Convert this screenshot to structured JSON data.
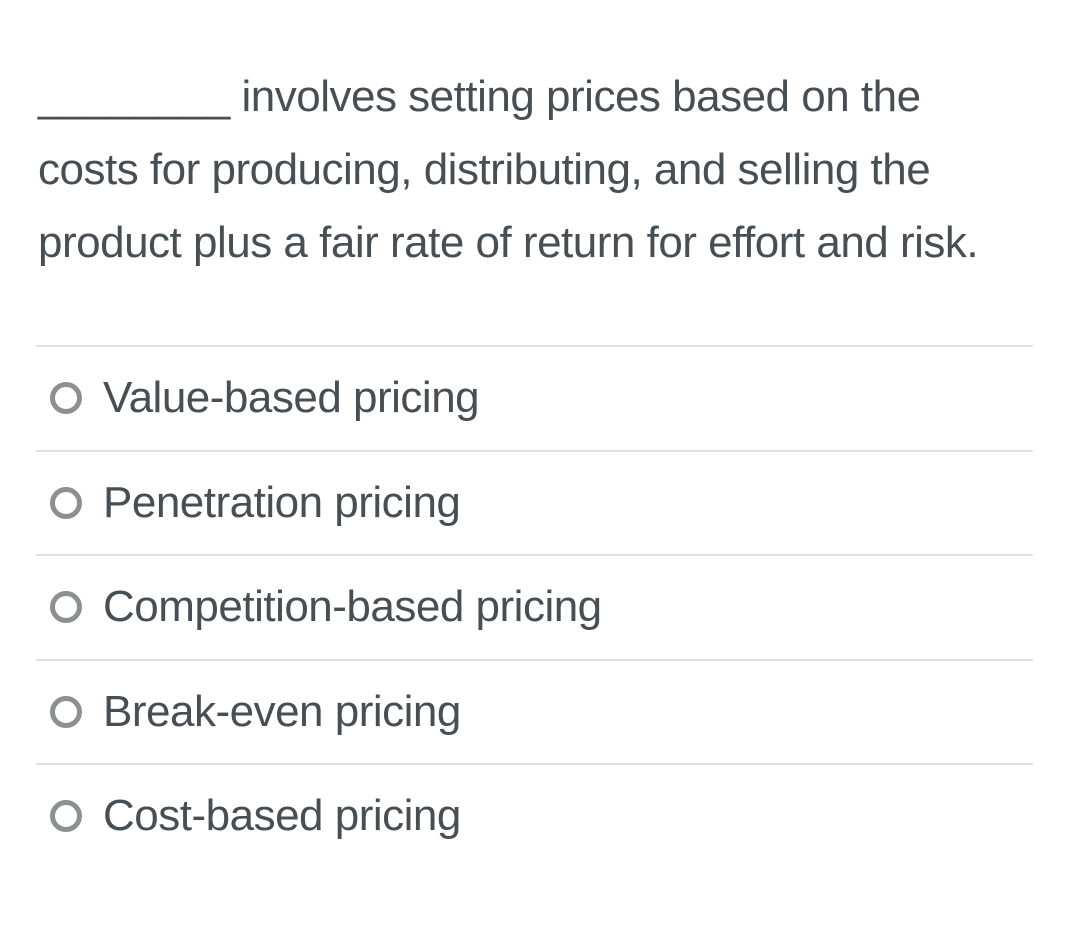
{
  "question": {
    "text": "________ involves setting prices based on the costs for producing, distributing, and selling the product plus a fair rate of return for effort and risk.",
    "blank_placeholder": "________"
  },
  "options": [
    {
      "label": "Value-based pricing",
      "selected": false
    },
    {
      "label": "Penetration pricing",
      "selected": false
    },
    {
      "label": "Competition-based pricing",
      "selected": false
    },
    {
      "label": "Break-even pricing",
      "selected": false
    },
    {
      "label": "Cost-based pricing",
      "selected": false
    }
  ],
  "colors": {
    "background": "#ffffff",
    "text": "#474e54",
    "divider": "#e1e1e1",
    "radio_border": "#8d9091"
  }
}
